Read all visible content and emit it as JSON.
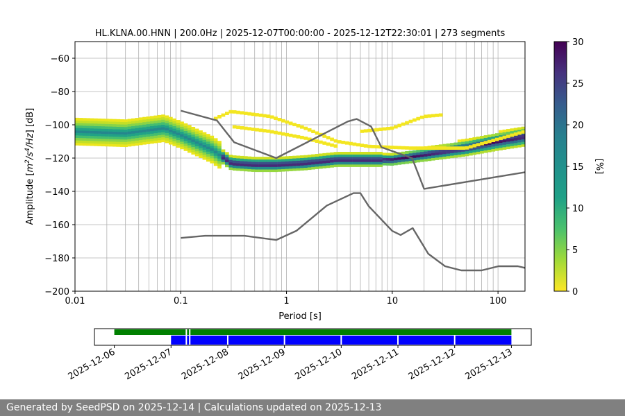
{
  "chart_data": [
    {
      "type": "heatmap",
      "title": "HL.KLNA.00.HNN | 200.0Hz | 2025-12-07T00:00:00 - 2025-12-12T22:30:01 | 273 segments",
      "xlabel": "Period [s]",
      "ylabel_parts": [
        "Amplitude [",
        "m",
        "2",
        "/s",
        "4",
        "/Hz",
        "] [dB]"
      ],
      "x_scale": "log",
      "xlim": [
        0.01,
        180
      ],
      "ylim": [
        -200,
        -50
      ],
      "x_ticks": [
        {
          "value": 0.01,
          "label": "0.01"
        },
        {
          "value": 0.1,
          "label": "0.1"
        },
        {
          "value": 1,
          "label": "1"
        },
        {
          "value": 10,
          "label": "10"
        },
        {
          "value": 100,
          "label": "100"
        }
      ],
      "y_ticks": [
        {
          "value": -60,
          "label": "−60"
        },
        {
          "value": -80,
          "label": "−80"
        },
        {
          "value": -100,
          "label": "−100"
        },
        {
          "value": -120,
          "label": "−120"
        },
        {
          "value": -140,
          "label": "−140"
        },
        {
          "value": -160,
          "label": "−160"
        },
        {
          "value": -180,
          "label": "−180"
        },
        {
          "value": -200,
          "label": "−200"
        }
      ],
      "grid": "vertical at log minor ticks",
      "colorbar": {
        "label": "[%]",
        "min": 0,
        "max": 30,
        "ticks": [
          0,
          5,
          10,
          15,
          20,
          25,
          30
        ],
        "colormap": "viridis_r"
      },
      "psd_mode": [
        [
          0.01,
          -104
        ],
        [
          0.03,
          -105
        ],
        [
          0.07,
          -102
        ],
        [
          0.1,
          -106
        ],
        [
          0.2,
          -115
        ],
        [
          0.3,
          -123
        ],
        [
          0.5,
          -124
        ],
        [
          0.8,
          -124
        ],
        [
          1.5,
          -123
        ],
        [
          3,
          -121
        ],
        [
          6,
          -121
        ],
        [
          10,
          -121
        ],
        [
          20,
          -118
        ],
        [
          50,
          -114
        ],
        [
          100,
          -110
        ],
        [
          180,
          -107
        ]
      ],
      "secondary_bands": [
        {
          "points": [
            [
              0.2,
              -97
            ],
            [
              0.3,
              -92
            ],
            [
              0.7,
              -95
            ],
            [
              1.5,
              -102
            ],
            [
              3,
              -110
            ],
            [
              6,
              -113
            ],
            [
              15,
              -114
            ],
            [
              50,
              -114
            ],
            [
              180,
              -104
            ]
          ]
        },
        {
          "points": [
            [
              0.3,
              -101
            ],
            [
              0.7,
              -104
            ],
            [
              1.5,
              -108
            ],
            [
              3,
              -113
            ]
          ]
        },
        {
          "points": [
            [
              5,
              -104
            ],
            [
              10,
              -102
            ],
            [
              20,
              -95
            ],
            [
              30,
              -94
            ]
          ]
        }
      ],
      "noise_models": [
        {
          "name": "high",
          "points": [
            [
              0.1,
              -91.5
            ],
            [
              0.22,
              -97.4
            ],
            [
              0.32,
              -110.5
            ],
            [
              0.8,
              -120
            ],
            [
              3.8,
              -98
            ],
            [
              4.6,
              -96.5
            ],
            [
              6.3,
              -101
            ],
            [
              7.9,
              -113.5
            ],
            [
              15.4,
              -120
            ],
            [
              20,
              -138.5
            ],
            [
              180,
              -128.5
            ]
          ]
        },
        {
          "name": "low",
          "points": [
            [
              0.1,
              -168
            ],
            [
              0.17,
              -166.7
            ],
            [
              0.4,
              -166.7
            ],
            [
              0.8,
              -169.2
            ],
            [
              1.24,
              -163.7
            ],
            [
              2.4,
              -148.6
            ],
            [
              4.3,
              -141.1
            ],
            [
              5,
              -141.1
            ],
            [
              6,
              -149
            ],
            [
              10,
              -163.8
            ],
            [
              12,
              -166.2
            ],
            [
              15.6,
              -162.1
            ],
            [
              21.9,
              -177.5
            ],
            [
              31.6,
              -185
            ],
            [
              45,
              -187.5
            ],
            [
              70,
              -187.5
            ],
            [
              101,
              -185
            ],
            [
              154,
              -185
            ],
            [
              180,
              -186
            ]
          ]
        }
      ]
    },
    {
      "type": "timeline",
      "x_ticks": [
        "2025-12-06",
        "2025-12-07",
        "2025-12-08",
        "2025-12-09",
        "2025-12-10",
        "2025-12-11",
        "2025-12-12",
        "2025-12-13"
      ],
      "xlim_days": [
        5.65,
        13.35
      ],
      "rows": [
        {
          "color": "#008000",
          "start_day": 6.0,
          "end_day": 13.0,
          "gaps_day": [
            7.27,
            7.33
          ]
        },
        {
          "color": "#0000ff",
          "start_day": 7.0,
          "end_day": 13.0,
          "gaps_day": [
            7.27,
            7.33,
            8.0,
            9.0,
            10.0,
            11.0,
            12.0
          ]
        }
      ]
    }
  ],
  "footer": {
    "text": "Generated by SeedPSD on 2025-12-14 | Calculations updated on 2025-12-13"
  },
  "colors": {
    "noise_model": "#666666",
    "footer_bg": "#808080",
    "timeline_green": "#008000",
    "timeline_blue": "#0000ff"
  }
}
